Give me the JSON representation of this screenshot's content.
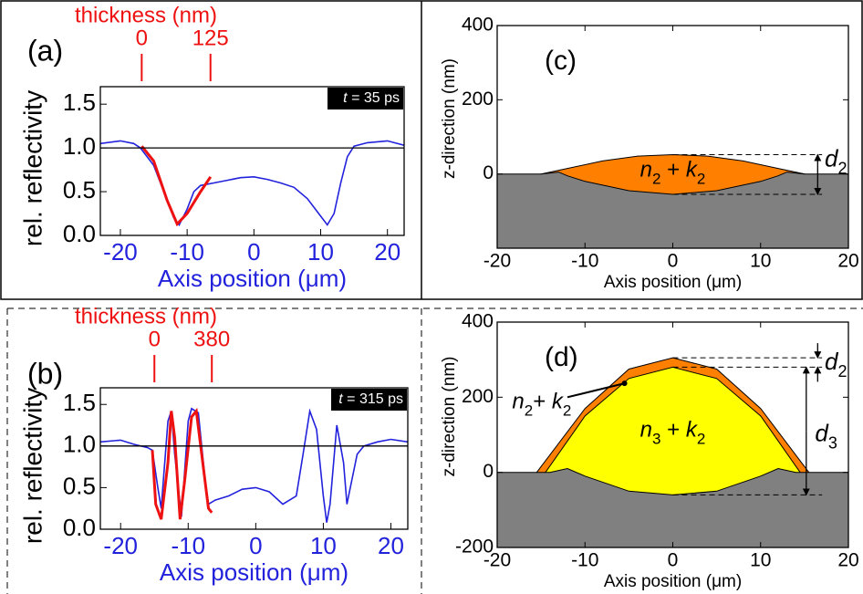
{
  "chart_data": [
    {
      "type": "line",
      "panel_label": "(a)",
      "x_label": "Axis position (μm)",
      "y_label": "rel. reflectivity",
      "x2_label": "thickness (nm)",
      "time_symbol": "t",
      "time_value": " = 35 ps",
      "xlim": [
        -23,
        22.5
      ],
      "xticks": [
        -20,
        -10,
        0,
        10,
        20
      ],
      "ylim": [
        0,
        1.7
      ],
      "yticks": [
        {
          "value": 0,
          "label": "0.0"
        },
        0.5,
        {
          "value": 1,
          "label": "1.0"
        },
        1.5
      ],
      "x2lim": [
        -75.2,
        477
      ],
      "x2ticks": [
        0,
        125
      ],
      "x2_color": "#ee1111",
      "xaxis_color": "#2222dd",
      "reference_line": 1,
      "series": [
        {
          "color": "#2222dd",
          "x": [
            -23,
            -20,
            -18,
            -17,
            -15,
            -13,
            -12,
            -11.2,
            -10,
            -9,
            -8,
            -6,
            -4,
            -2,
            0,
            2,
            4,
            6,
            8,
            10,
            11,
            12,
            13,
            14,
            15,
            17,
            20,
            22.5
          ],
          "values": [
            1.05,
            1.08,
            1.05,
            1.0,
            0.8,
            0.4,
            0.2,
            0.12,
            0.3,
            0.5,
            0.57,
            0.6,
            0.63,
            0.66,
            0.67,
            0.64,
            0.6,
            0.55,
            0.42,
            0.22,
            0.12,
            0.25,
            0.6,
            0.9,
            1.02,
            1.06,
            1.08,
            1.03
          ]
        },
        {
          "color": "#ee1111",
          "x": [
            -16.8,
            -15,
            -13,
            -11.5,
            -10,
            -8,
            -6.5
          ],
          "values": [
            1.02,
            0.85,
            0.4,
            0.13,
            0.25,
            0.5,
            0.67
          ]
        }
      ]
    },
    {
      "type": "line",
      "panel_label": "(b)",
      "x_label": "Axis position (μm)",
      "y_label": "rel. reflectivity",
      "x2_label": "thickness (nm)",
      "time_symbol": "t",
      "time_value": " = 315 ps",
      "xlim": [
        -23,
        22.5
      ],
      "xticks": [
        -20,
        -10,
        0,
        10,
        20
      ],
      "ylim": [
        0,
        1.7
      ],
      "yticks": [
        {
          "value": 0,
          "label": "0.0"
        },
        0.5,
        {
          "value": 1,
          "label": "1.0"
        },
        1.5
      ],
      "x2lim": [
        -357.6,
        1676.5
      ],
      "x2ticks": [
        0,
        380
      ],
      "x2_color": "#ee1111",
      "xaxis_color": "#2222dd",
      "reference_line": 1,
      "series": [
        {
          "color": "#2222dd",
          "x": [
            -23,
            -20,
            -18,
            -16,
            -15.3,
            -14.5,
            -14,
            -13,
            -12.5,
            -12,
            -11,
            -10,
            -9.5,
            -8.5,
            -7.5,
            -7,
            -6,
            -4,
            -2,
            0,
            2,
            4,
            6,
            7,
            8,
            9,
            10,
            10.5,
            11,
            12,
            13,
            13.5,
            14,
            15,
            16,
            18,
            20,
            22.5
          ],
          "values": [
            1.05,
            1.07,
            1.02,
            0.98,
            0.95,
            0.5,
            0.25,
            1.3,
            1.42,
            0.9,
            0.15,
            1.3,
            1.45,
            1.4,
            0.6,
            0.3,
            0.35,
            0.4,
            0.48,
            0.5,
            0.45,
            0.3,
            0.4,
            0.9,
            1.42,
            1.2,
            0.4,
            0.08,
            0.3,
            1.25,
            0.8,
            0.3,
            0.5,
            0.9,
            1.0,
            1.05,
            1.08,
            1.05
          ]
        },
        {
          "color": "#ee1111",
          "x": [
            -15.3,
            -14.8,
            -14,
            -13,
            -12.5,
            -12,
            -11.2,
            -10.5,
            -9.5,
            -8.8,
            -8,
            -7,
            -6.5
          ],
          "values": [
            0.95,
            0.3,
            0.12,
            0.8,
            1.42,
            1.1,
            0.12,
            0.6,
            1.35,
            1.42,
            0.9,
            0.25,
            0.2
          ]
        }
      ]
    },
    {
      "type": "cross_section",
      "panel_label": "(c)",
      "x_label": "Axis position (μm)",
      "y_label": "z-direction (nm)",
      "xlim": [
        -20,
        20
      ],
      "xticks": [
        -20,
        -10,
        0,
        10,
        20
      ],
      "ylim": [
        -200,
        400
      ],
      "yticks": [
        0,
        200,
        400
      ],
      "layers": [
        {
          "color": "#ff8000",
          "x": [
            -15,
            -12,
            -8,
            -4,
            0,
            4,
            8,
            12,
            15
          ],
          "values": [
            0,
            15,
            35,
            48,
            52,
            48,
            35,
            15,
            0
          ]
        },
        {
          "color": "#808080",
          "x": [
            -20,
            -15,
            -13,
            -12,
            -10,
            -5,
            0,
            5,
            10,
            12,
            13,
            15,
            20
          ],
          "values": [
            0,
            0,
            5,
            -5,
            -20,
            -45,
            -55,
            -45,
            -20,
            -5,
            5,
            0,
            0
          ]
        }
      ],
      "layer_labels": [
        [
          "n",
          "2",
          " + ",
          "k",
          "2"
        ]
      ],
      "dimension_labels": [
        [
          "d",
          "2"
        ]
      ]
    },
    {
      "type": "cross_section",
      "panel_label": "(d)",
      "x_label": "Axis position (μm)",
      "y_label": "z-direction (nm)",
      "xlim": [
        -20,
        20
      ],
      "xticks": [
        -20,
        -10,
        0,
        10,
        20
      ],
      "ylim": [
        -200,
        400
      ],
      "yticks": [
        -200,
        0,
        200,
        400
      ],
      "layers": [
        {
          "color": "#ff8000",
          "x": [
            -15.5,
            -10,
            -5,
            0,
            5,
            10,
            15.5
          ],
          "values": [
            0,
            170,
            275,
            305,
            275,
            170,
            0
          ]
        },
        {
          "color": "#ffff00",
          "x": [
            -14.5,
            -10,
            -5,
            0,
            5,
            10,
            14.5
          ],
          "values": [
            0,
            150,
            250,
            280,
            250,
            150,
            0
          ]
        },
        {
          "color": "#808080",
          "x": [
            -20,
            -14,
            -12,
            -10,
            -5,
            0,
            5,
            10,
            12,
            14,
            20
          ],
          "values": [
            0,
            0,
            10,
            -10,
            -50,
            -60,
            -50,
            -10,
            10,
            0,
            0
          ]
        }
      ],
      "layer_labels": [
        [
          "n",
          "3",
          " + ",
          "k",
          "2"
        ],
        [
          "n",
          "2",
          "+ ",
          "k",
          "2"
        ]
      ],
      "dimension_labels": [
        [
          "d",
          "2"
        ],
        [
          "d",
          "3"
        ]
      ]
    }
  ]
}
